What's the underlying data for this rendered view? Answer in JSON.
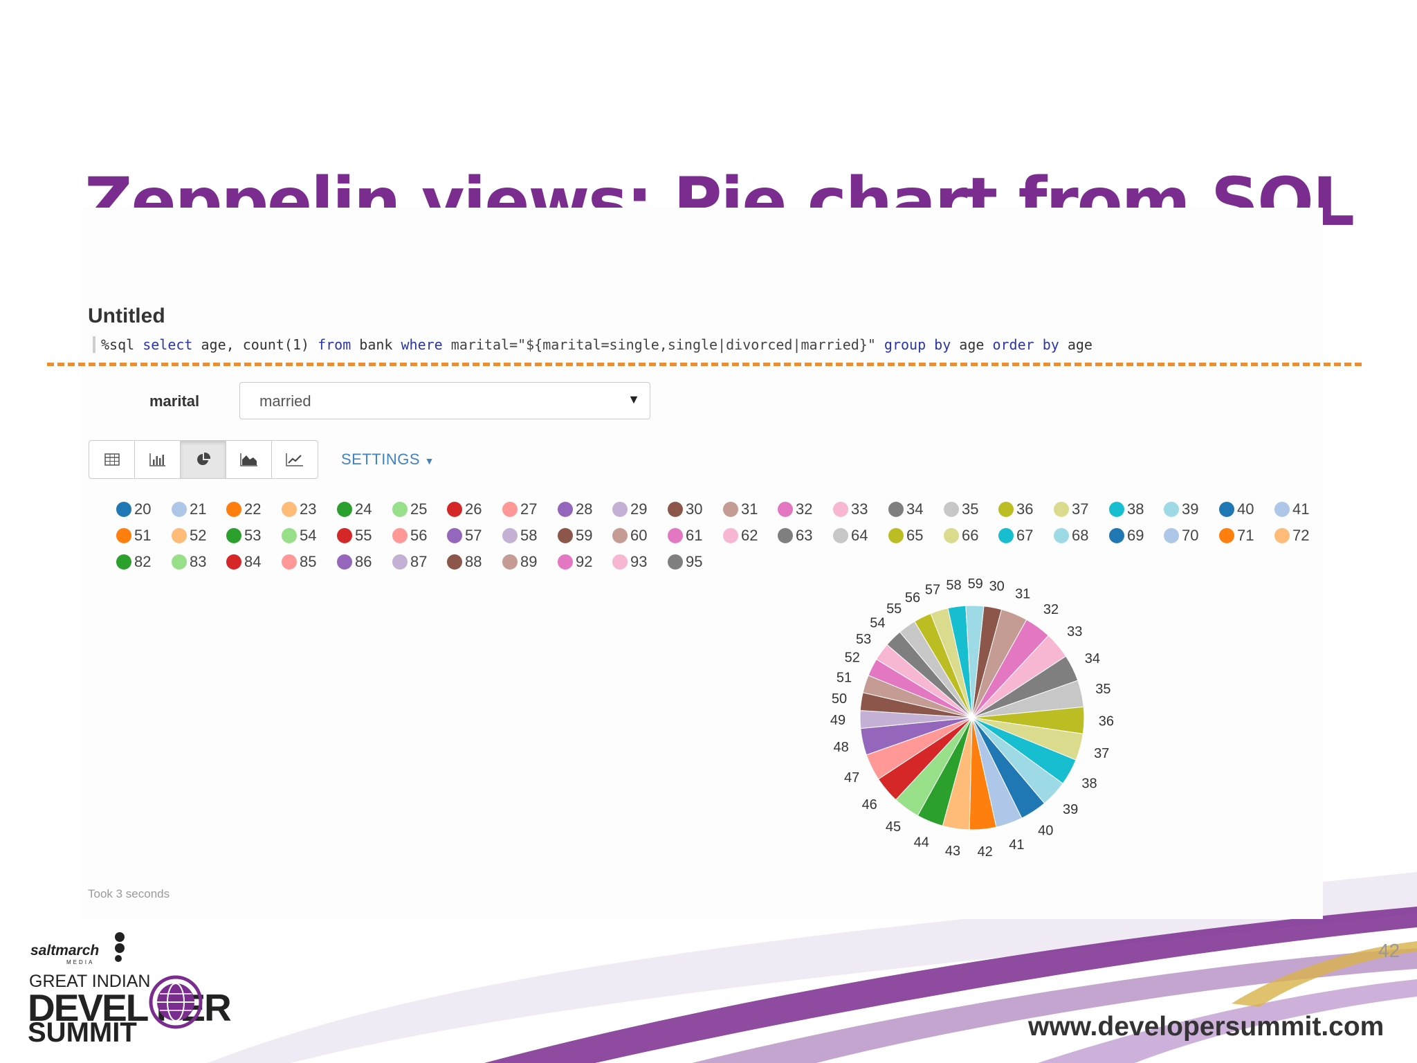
{
  "slide": {
    "title": "Zeppelin views: Pie chart from SQL",
    "page_number": "42",
    "website": "www.developersummit.com",
    "logo": {
      "brand": "saltmarch",
      "brand_sub": "MEDIA",
      "line1": "GREAT INDIAN",
      "line2": "DEVEL  PER",
      "line3": "SUMMIT"
    },
    "accent_color": "#7b2c8f"
  },
  "paragraph": {
    "title": "Untitled",
    "code": {
      "t0": "%sql ",
      "t1": "select",
      "t2": " age, count(1) ",
      "t3": "from",
      "t4": " bank ",
      "t5": "where",
      "t6": " marital=\"${marital=single,single|divorced|married}\" ",
      "t7": "group by",
      "t8": " age ",
      "t9": "order by",
      "t10": " age"
    },
    "form": {
      "label": "marital",
      "selected": "married"
    },
    "view_buttons": [
      "table-icon",
      "bar-chart-icon",
      "pie-chart-icon",
      "area-chart-icon",
      "line-chart-icon"
    ],
    "active_view": "pie-chart-icon",
    "settings_label": "SETTINGS",
    "footer": "Took 3 seconds"
  },
  "chart_data": {
    "type": "pie",
    "legend": [
      "20",
      "21",
      "22",
      "23",
      "24",
      "25",
      "26",
      "27",
      "28",
      "29",
      "30",
      "31",
      "32",
      "33",
      "34",
      "35",
      "36",
      "37",
      "38",
      "39",
      "40",
      "41",
      "51",
      "52",
      "53",
      "54",
      "55",
      "56",
      "57",
      "58",
      "59",
      "60",
      "61",
      "62",
      "63",
      "64",
      "65",
      "66",
      "67",
      "68",
      "69",
      "70",
      "71",
      "72",
      "82",
      "83",
      "84",
      "85",
      "86",
      "87",
      "88",
      "89",
      "92",
      "93",
      "95"
    ],
    "colors": [
      "#1f77b4",
      "#aec7e8",
      "#ff7f0e",
      "#ffbb78",
      "#2ca02c",
      "#98df8a",
      "#d62728",
      "#ff9896",
      "#9467bd",
      "#c5b0d5",
      "#8c564b",
      "#c49c94",
      "#e377c2",
      "#f7b6d2",
      "#7f7f7f",
      "#c7c7c7",
      "#bcbd22",
      "#dbdb8d",
      "#17becf",
      "#9edae5"
    ],
    "slice_labels": [
      "30",
      "31",
      "32",
      "33",
      "34",
      "35",
      "36",
      "37",
      "38",
      "39",
      "40",
      "41",
      "42",
      "43",
      "44",
      "45",
      "46",
      "47",
      "48",
      "49",
      "50",
      "51",
      "52",
      "53",
      "54",
      "55",
      "56",
      "57",
      "58",
      "59"
    ],
    "slice_values": [
      2,
      3,
      3,
      3,
      3,
      3,
      3,
      3,
      3,
      3,
      3,
      3,
      3,
      3,
      3,
      3,
      3,
      3,
      3,
      2,
      2,
      2,
      2,
      2,
      2,
      2,
      2,
      2,
      2,
      2
    ],
    "start_angle_deg": 6
  }
}
